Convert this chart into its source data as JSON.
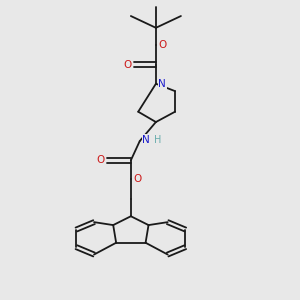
{
  "bg_color": "#e8e8e8",
  "atom_colors": {
    "C": "#1a1a1a",
    "N": "#1a1acc",
    "O": "#cc1a1a",
    "H": "#6aadad"
  },
  "bond_color": "#1a1a1a"
}
